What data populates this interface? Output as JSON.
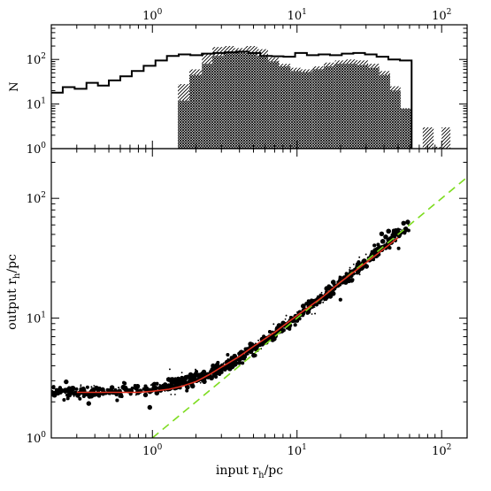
{
  "chart_data": [
    {
      "type": "histogram",
      "xscale": "log",
      "yscale": "log",
      "xlim": [
        0.2,
        150
      ],
      "ylim": [
        1,
        600
      ],
      "ylabel": "N",
      "x_tick_labels": [
        "10^0",
        "10^1",
        "10^2"
      ],
      "y_tick_labels": [
        "10^0",
        "10^1",
        "10^2"
      ],
      "x_ticks": [
        1,
        10,
        100
      ],
      "y_ticks": [
        1,
        10,
        100
      ],
      "series": [
        {
          "style": "step-outline",
          "edges": [
            0.2,
            0.24,
            0.29,
            0.35,
            0.42,
            0.5,
            0.6,
            0.72,
            0.87,
            1.05,
            1.26,
            1.52,
            1.83,
            2.2,
            2.65,
            3.2,
            3.85,
            4.63,
            5.57,
            6.7,
            8.06,
            9.7,
            11.7,
            14.1,
            16.9,
            20.4,
            24.5,
            29.5,
            35.5,
            42.8,
            51.5,
            62
          ],
          "counts": [
            18,
            24,
            22,
            30,
            26,
            34,
            42,
            55,
            72,
            95,
            120,
            130,
            125,
            135,
            140,
            145,
            150,
            140,
            120,
            118,
            115,
            140,
            125,
            130,
            125,
            135,
            140,
            130,
            115,
            100,
            95
          ]
        },
        {
          "style": "hatched-fill",
          "edges": [
            1.5,
            1.8,
            2.2,
            2.6,
            3.1,
            3.7,
            4.4,
            5.3,
            6.3,
            7.5,
            9,
            10.7,
            12.8,
            15.3,
            18.3,
            21.8,
            26,
            31,
            37,
            44,
            52,
            62,
            74,
            88,
            100,
            115
          ],
          "counts": [
            28,
            60,
            130,
            190,
            200,
            180,
            200,
            170,
            110,
            80,
            65,
            60,
            70,
            85,
            95,
            100,
            95,
            80,
            55,
            25,
            8,
            1,
            3,
            1.1,
            3
          ]
        },
        {
          "style": "crosshatched-fill",
          "edges": [
            1.5,
            1.8,
            2.2,
            2.6,
            3.1,
            3.7,
            4.4,
            5.3,
            6.3,
            7.5,
            9,
            10.7,
            12.8,
            15.3,
            18.3,
            21.8,
            26,
            31,
            37,
            44,
            52,
            62
          ],
          "counts": [
            12,
            45,
            80,
            120,
            140,
            150,
            140,
            120,
            90,
            70,
            55,
            52,
            60,
            70,
            80,
            80,
            75,
            65,
            45,
            20,
            8
          ]
        }
      ]
    },
    {
      "type": "scatter",
      "xscale": "log",
      "yscale": "log",
      "xlim": [
        0.2,
        150
      ],
      "ylim": [
        1,
        260
      ],
      "xlabel": "input r",
      "xlabel_sub": "h",
      "xlabel_unit": "/pc",
      "ylabel": "output r",
      "ylabel_sub": "h",
      "ylabel_unit": "/pc",
      "x_tick_labels": [
        "10^0",
        "10^1",
        "10^2"
      ],
      "y_tick_labels": [
        "10^0",
        "10^1",
        "10^2"
      ],
      "x_ticks": [
        1,
        10,
        100
      ],
      "y_ticks": [
        1,
        10,
        100
      ],
      "one_to_one_line": {
        "x": [
          1,
          150
        ],
        "y": [
          1,
          150
        ],
        "color": "#7ddc1f",
        "style": "dashed"
      },
      "trend_line": {
        "color": "#e0301e",
        "x": [
          0.3,
          0.5,
          0.8,
          1.0,
          1.3,
          1.6,
          2.0,
          2.5,
          3.0,
          4.0,
          5.0,
          7.0,
          10,
          15,
          20,
          30,
          40,
          50
        ],
        "y": [
          2.4,
          2.4,
          2.4,
          2.45,
          2.55,
          2.7,
          2.95,
          3.4,
          3.9,
          4.8,
          5.8,
          7.6,
          10.5,
          15,
          20,
          29,
          38,
          47
        ]
      },
      "point_count": 1500,
      "point_color": "#000000"
    }
  ],
  "colors": {
    "hatch": "#000000",
    "green_dash": "#7ddc1f",
    "red_line": "#e0301e"
  }
}
